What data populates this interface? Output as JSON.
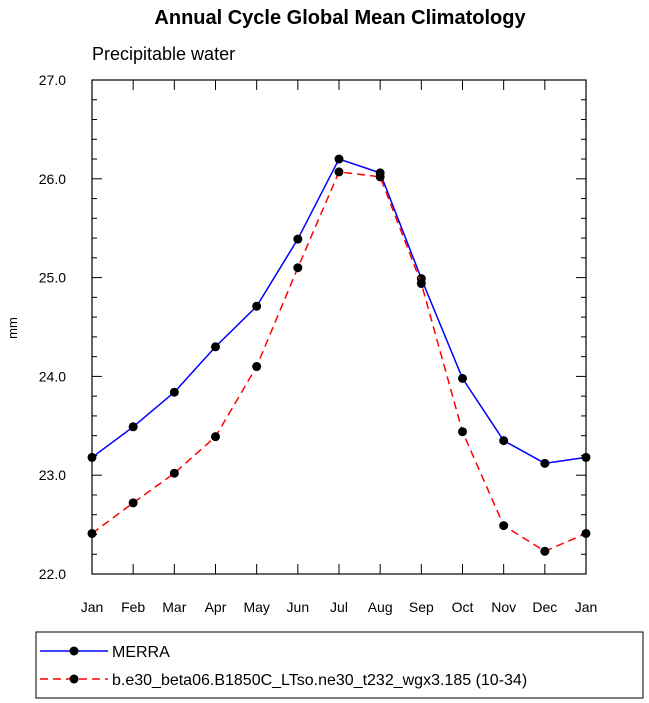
{
  "chart_data": {
    "type": "line",
    "title": "Annual Cycle Global Mean Climatology",
    "subtitle": "Precipitable water",
    "ylabel": "mm",
    "xlabel": "",
    "categories": [
      "Jan",
      "Feb",
      "Mar",
      "Apr",
      "May",
      "Jun",
      "Jul",
      "Aug",
      "Sep",
      "Oct",
      "Nov",
      "Dec",
      "Jan"
    ],
    "ylim": [
      22.0,
      27.0
    ],
    "yticks": [
      "22.0",
      "23.0",
      "24.0",
      "25.0",
      "26.0",
      "27.0"
    ],
    "grid": false,
    "legend_position": "bottom",
    "series": [
      {
        "name": "MERRA",
        "color": "#0000ff",
        "dash": "solid",
        "values": [
          23.18,
          23.49,
          23.84,
          24.3,
          24.71,
          25.39,
          26.2,
          26.06,
          24.99,
          23.98,
          23.35,
          23.12,
          23.18
        ]
      },
      {
        "name": "b.e30_beta06.B1850C_LTso.ne30_t232_wgx3.185 (10-34)",
        "color": "#ff0000",
        "dash": "dashed",
        "values": [
          22.41,
          22.72,
          23.02,
          23.39,
          24.1,
          25.1,
          26.07,
          26.02,
          24.94,
          23.44,
          22.49,
          22.23,
          22.41
        ]
      }
    ]
  }
}
